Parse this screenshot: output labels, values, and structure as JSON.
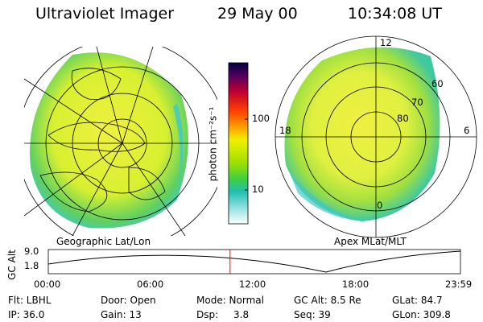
{
  "header": {
    "instrument": "Ultraviolet Imager",
    "date": "29 May 00",
    "time": "10:34:08 UT"
  },
  "left_panel": {
    "caption": "Geographic Lat/Lon"
  },
  "right_panel": {
    "caption": "Apex MLat/MLT",
    "mlt_labels": {
      "top": "12",
      "left": "18",
      "right": "6",
      "bottom": "0"
    },
    "lat_labels": [
      "60",
      "70",
      "80"
    ]
  },
  "colorbar": {
    "unit": "photon cm⁻²s⁻¹",
    "tick_labels": [
      "100",
      "10"
    ],
    "scale": "log",
    "colors": [
      "#000040",
      "#400060",
      "#900050",
      "#d00020",
      "#ff6000",
      "#ffb000",
      "#f0f000",
      "#c0f000",
      "#80e000",
      "#40d040",
      "#20c0a0",
      "#40d0d0",
      "#a0e8e8",
      "#ffffff"
    ]
  },
  "altitude_plot": {
    "ylabel": "GC Alt",
    "yticks": [
      "9.0",
      "1.8"
    ],
    "xticks": [
      "00:00",
      "06:00",
      "12:00",
      "18:00",
      "23:59"
    ],
    "current_time_fraction": 0.441
  },
  "info": {
    "filter": "Flt: LBHL",
    "ip": "IP: 36.0",
    "door": "Door: Open",
    "gain": "Gain: 13",
    "mode": "Mode: Normal",
    "dsp": "Dsp:",
    "dsp_value": "3.8",
    "gc_alt": "GC Alt: 8.5 Re",
    "seq": "Seq: 39",
    "glat": "GLat:  84.7",
    "glon": "GLon: 309.8"
  }
}
